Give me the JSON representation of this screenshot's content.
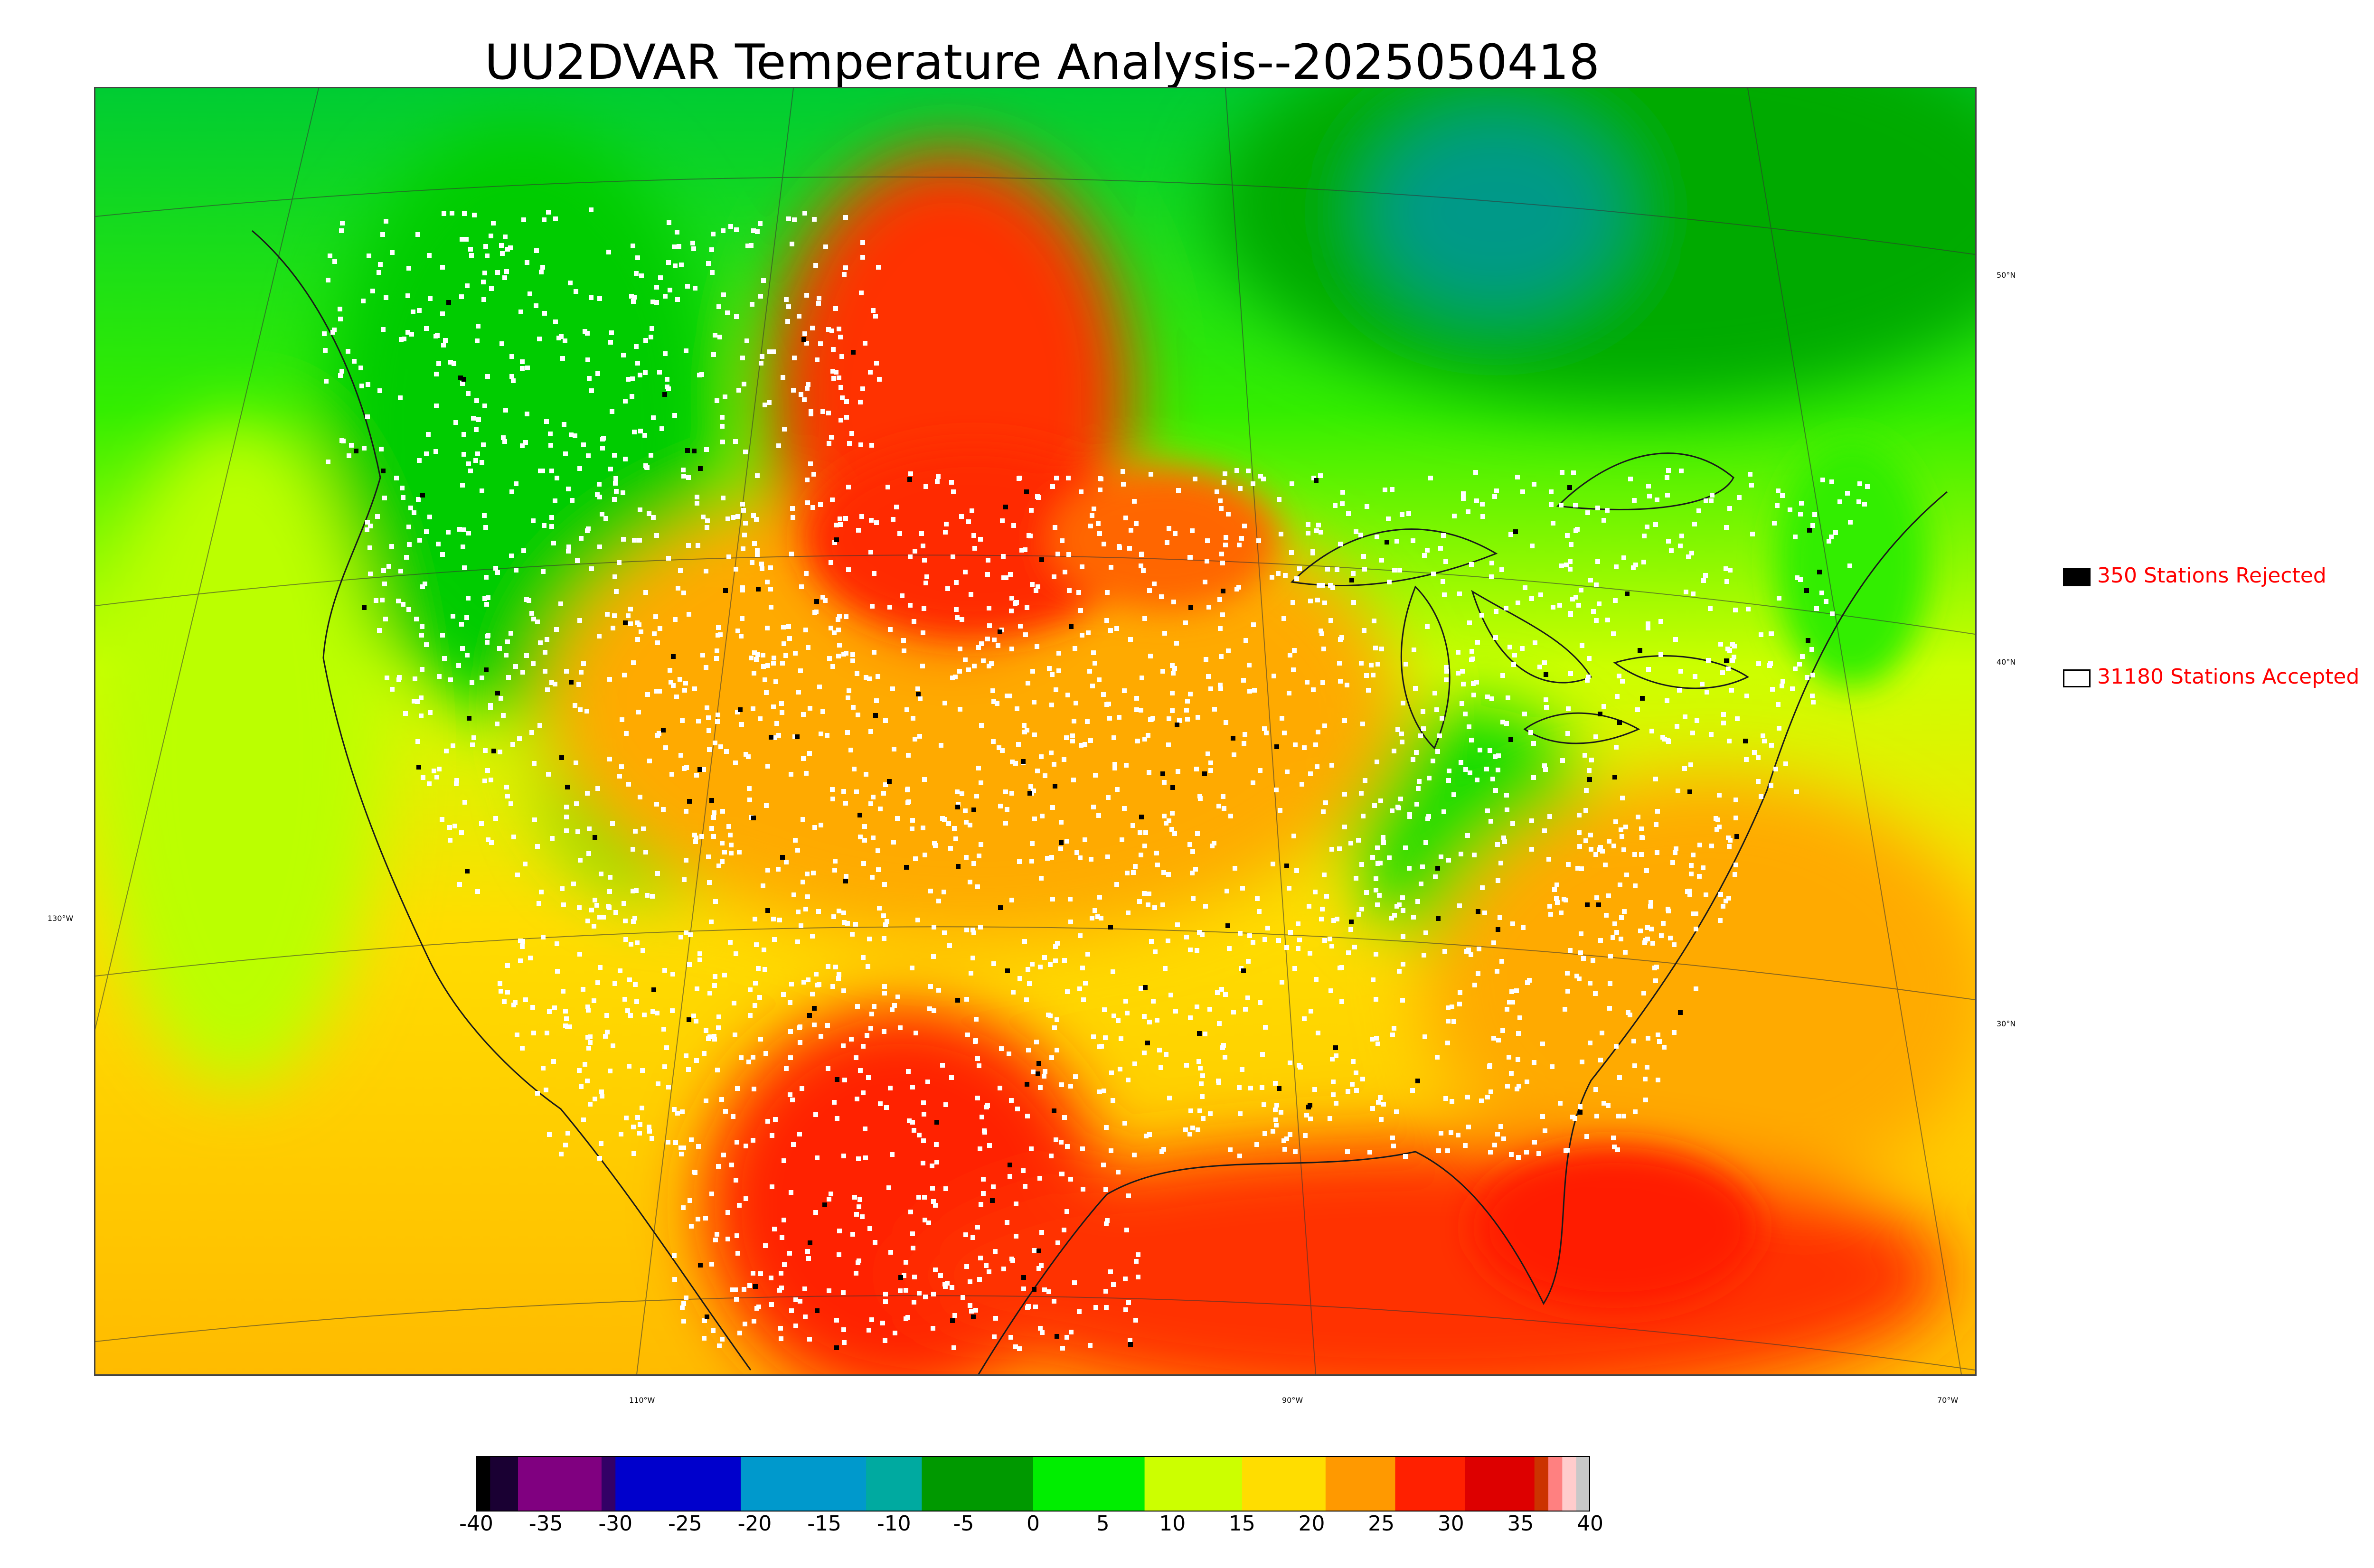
{
  "title": "UU2DVAR Temperature Analysis--2025050418",
  "map": {
    "type": "gridded temperature analysis with observation stations",
    "graticule_labels": {
      "latitudes": [
        "50°N",
        "40°N",
        "30°N"
      ],
      "longitudes": [
        "130°W",
        "110°W",
        "90°W",
        "70°W"
      ]
    },
    "colors": {
      "hot_core": "#e60000",
      "hot": "#ff3300",
      "warm": "#ff9900",
      "mild": "#ffcc00",
      "cool": "#ccff00",
      "cold": "#00ee00",
      "colder": "#00aa00",
      "coast": "#1a1a1a",
      "station_accepted": "#ffffff",
      "station_rejected": "#000000"
    }
  },
  "legend": {
    "rejected": {
      "label": "350 Stations Rejected",
      "swatch_color": "#000000"
    },
    "accepted": {
      "label": "31180 Stations Accepted",
      "swatch_color": "#ffffff"
    }
  },
  "colorbar": {
    "min": -40,
    "max": 40,
    "ticks": [
      "-40",
      "-35",
      "-30",
      "-25",
      "-20",
      "-15",
      "-10",
      "-5",
      "0",
      "5",
      "10",
      "15",
      "20",
      "25",
      "30",
      "35",
      "40"
    ],
    "tick_values": [
      -40,
      -35,
      -30,
      -25,
      -20,
      -15,
      -10,
      -5,
      0,
      5,
      10,
      15,
      20,
      25,
      30,
      35,
      40
    ],
    "segments": [
      {
        "from": -40,
        "to": -39,
        "color": "#000000"
      },
      {
        "from": -39,
        "to": -37,
        "color": "#1a0033"
      },
      {
        "from": -37,
        "to": -31,
        "color": "#800080"
      },
      {
        "from": -31,
        "to": -30,
        "color": "#330066"
      },
      {
        "from": -30,
        "to": -21,
        "color": "#0000cc"
      },
      {
        "from": -21,
        "to": -12,
        "color": "#0099cc"
      },
      {
        "from": -12,
        "to": -8,
        "color": "#00aaa0"
      },
      {
        "from": -8,
        "to": 0,
        "color": "#009900"
      },
      {
        "from": 0,
        "to": 8,
        "color": "#00ee00"
      },
      {
        "from": 8,
        "to": 15,
        "color": "#ccff00"
      },
      {
        "from": 15,
        "to": 21,
        "color": "#ffdd00"
      },
      {
        "from": 21,
        "to": 26,
        "color": "#ff9900"
      },
      {
        "from": 26,
        "to": 31,
        "color": "#ff2000"
      },
      {
        "from": 31,
        "to": 36,
        "color": "#dd0000"
      },
      {
        "from": 36,
        "to": 37,
        "color": "#cc3300"
      },
      {
        "from": 37,
        "to": 38,
        "color": "#ff8080"
      },
      {
        "from": 38,
        "to": 39,
        "color": "#ffcccc"
      },
      {
        "from": 39,
        "to": 40,
        "color": "#c8c8c8"
      }
    ]
  }
}
